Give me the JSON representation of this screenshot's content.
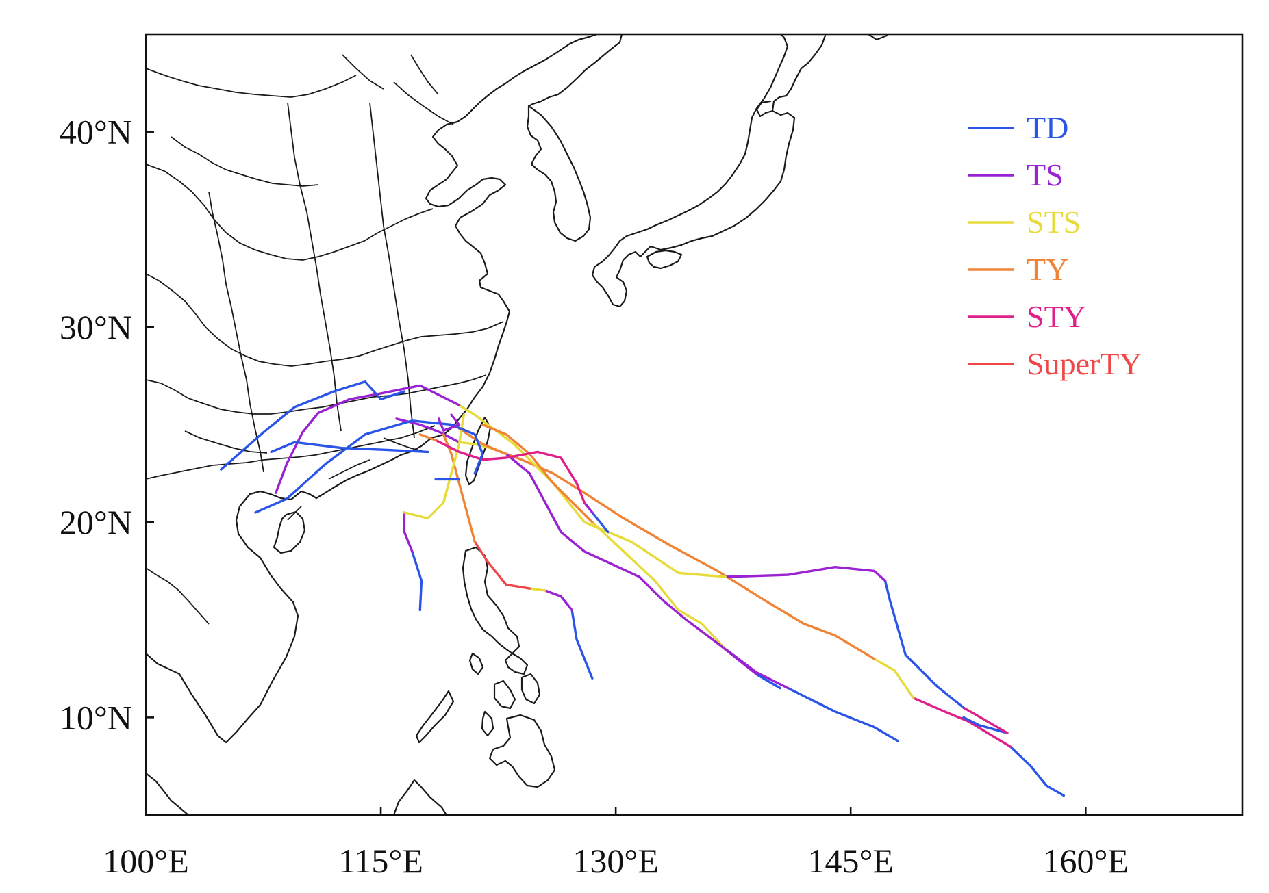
{
  "map": {
    "lon_range": [
      100,
      170
    ],
    "lat_range": [
      5,
      45
    ],
    "x_tick_labels": [
      {
        "lon": 100,
        "label": "100°E"
      },
      {
        "lon": 115,
        "label": "115°E"
      },
      {
        "lon": 130,
        "label": "130°E"
      },
      {
        "lon": 145,
        "label": "145°E"
      },
      {
        "lon": 160,
        "label": "160°E"
      }
    ],
    "y_tick_labels": [
      {
        "lat": 40,
        "label": "40°N"
      },
      {
        "lat": 30,
        "label": "30°N"
      },
      {
        "lat": 20,
        "label": "20°N"
      },
      {
        "lat": 10,
        "label": "10°N"
      }
    ]
  },
  "legend": {
    "placement": "top-right",
    "items": [
      {
        "key": "TD",
        "label": "TD",
        "color": "#2b55e8"
      },
      {
        "key": "TS",
        "label": "TS",
        "color": "#9a22d2"
      },
      {
        "key": "STS",
        "label": "STS",
        "color": "#e6db3a"
      },
      {
        "key": "TY",
        "label": "TY",
        "color": "#ef8436"
      },
      {
        "key": "STY",
        "label": "STY",
        "color": "#e0208a"
      },
      {
        "key": "SuperTY",
        "label": "SuperTY",
        "color": "#ee4848"
      }
    ]
  },
  "tracks": [
    {
      "id": "track-1",
      "segments": [
        {
          "category": "TD",
          "points": [
            [
              158.6,
              6.0
            ],
            [
              157.5,
              6.5
            ],
            [
              156.5,
              7.5
            ],
            [
              155.2,
              8.5
            ]
          ]
        },
        {
          "category": "STY",
          "points": [
            [
              155.2,
              8.5
            ],
            [
              152.5,
              9.8
            ],
            [
              151.0,
              10.3
            ],
            [
              149.0,
              11.0
            ]
          ]
        },
        {
          "category": "STS",
          "points": [
            [
              149.0,
              11.0
            ],
            [
              147.8,
              12.4
            ],
            [
              146.5,
              13.0
            ]
          ]
        },
        {
          "category": "TY",
          "points": [
            [
              146.5,
              13.0
            ],
            [
              144.0,
              14.2
            ],
            [
              142.0,
              14.8
            ],
            [
              139.5,
              16.0
            ],
            [
              136.5,
              17.5
            ],
            [
              133.5,
              18.8
            ],
            [
              130.5,
              20.2
            ],
            [
              128.0,
              21.5
            ],
            [
              126.0,
              22.5
            ],
            [
              124.0,
              23.2
            ],
            [
              122.0,
              23.8
            ]
          ]
        },
        {
          "category": "STS",
          "points": [
            [
              122.0,
              23.8
            ],
            [
              121.0,
              24.0
            ],
            [
              120.0,
              24.1
            ]
          ]
        },
        {
          "category": "TS",
          "points": [
            [
              120.0,
              24.1
            ],
            [
              118.8,
              24.6
            ],
            [
              117.5,
              25.0
            ],
            [
              116.0,
              25.3
            ]
          ]
        }
      ]
    },
    {
      "id": "track-2",
      "segments": [
        {
          "category": "TD",
          "points": [
            [
              152.2,
              10.0
            ],
            [
              153.2,
              9.6
            ],
            [
              155.0,
              9.2
            ]
          ]
        },
        {
          "category": "STY",
          "points": [
            [
              155.0,
              9.2
            ],
            [
              153.5,
              9.9
            ],
            [
              152.2,
              10.5
            ]
          ]
        },
        {
          "category": "TD",
          "points": [
            [
              152.2,
              10.5
            ],
            [
              150.5,
              11.6
            ],
            [
              148.5,
              13.2
            ],
            [
              147.5,
              16.0
            ],
            [
              147.2,
              17.0
            ]
          ]
        },
        {
          "category": "TS",
          "points": [
            [
              147.2,
              17.0
            ],
            [
              146.5,
              17.5
            ],
            [
              144.0,
              17.7
            ],
            [
              141.0,
              17.3
            ],
            [
              137.0,
              17.2
            ]
          ]
        },
        {
          "category": "STS",
          "points": [
            [
              137.0,
              17.2
            ],
            [
              134.0,
              17.4
            ],
            [
              131.0,
              19.0
            ],
            [
              128.0,
              20.0
            ],
            [
              126.0,
              22.0
            ],
            [
              123.5,
              24.0
            ],
            [
              121.0,
              25.5
            ],
            [
              120.0,
              26.0
            ]
          ]
        },
        {
          "category": "TS",
          "points": [
            [
              120.0,
              26.0
            ],
            [
              117.5,
              27.0
            ],
            [
              115.0,
              26.6
            ],
            [
              113.0,
              26.3
            ],
            [
              111.0,
              25.6
            ],
            [
              110.0,
              24.6
            ],
            [
              109.0,
              23.0
            ],
            [
              108.3,
              21.5
            ]
          ]
        }
      ]
    },
    {
      "id": "track-3",
      "segments": [
        {
          "category": "TD",
          "points": [
            [
              148.0,
              8.8
            ],
            [
              146.5,
              9.5
            ],
            [
              144.0,
              10.3
            ],
            [
              142.5,
              10.9
            ],
            [
              141.0,
              11.5
            ]
          ]
        },
        {
          "category": "TS",
          "points": [
            [
              141.0,
              11.5
            ],
            [
              139.0,
              12.3
            ],
            [
              137.0,
              13.5
            ]
          ]
        },
        {
          "category": "STS",
          "points": [
            [
              137.0,
              13.5
            ],
            [
              135.5,
              14.8
            ],
            [
              134.0,
              15.5
            ],
            [
              132.5,
              17.0
            ],
            [
              130.5,
              18.5
            ],
            [
              128.5,
              20.0
            ]
          ]
        },
        {
          "category": "TY",
          "points": [
            [
              128.5,
              20.0
            ],
            [
              127.5,
              20.8
            ],
            [
              126.0,
              22.0
            ],
            [
              124.5,
              23.5
            ],
            [
              123.0,
              24.5
            ],
            [
              121.5,
              25.0
            ]
          ]
        }
      ]
    },
    {
      "id": "track-4",
      "segments": [
        {
          "category": "TD",
          "points": [
            [
              140.5,
              11.5
            ],
            [
              139.0,
              12.2
            ]
          ]
        },
        {
          "category": "TS",
          "points": [
            [
              139.0,
              12.2
            ],
            [
              136.5,
              13.8
            ],
            [
              134.5,
              15.0
            ],
            [
              133.0,
              16.0
            ],
            [
              131.5,
              17.2
            ],
            [
              128.0,
              18.5
            ],
            [
              126.5,
              19.5
            ],
            [
              125.5,
              21.0
            ],
            [
              124.5,
              22.5
            ],
            [
              123.0,
              23.5
            ]
          ]
        },
        {
          "category": "TY",
          "points": [
            [
              123.0,
              23.5
            ],
            [
              121.5,
              24.0
            ],
            [
              120.0,
              24.8
            ]
          ]
        }
      ]
    },
    {
      "id": "track-5",
      "segments": [
        {
          "category": "TD",
          "points": [
            [
              128.5,
              12.0
            ],
            [
              127.5,
              14.0
            ],
            [
              127.2,
              15.5
            ]
          ]
        },
        {
          "category": "TS",
          "points": [
            [
              127.2,
              15.5
            ],
            [
              126.5,
              16.2
            ],
            [
              125.5,
              16.5
            ]
          ]
        },
        {
          "category": "STS",
          "points": [
            [
              125.5,
              16.5
            ],
            [
              124.5,
              16.6
            ]
          ]
        },
        {
          "category": "SuperTY",
          "points": [
            [
              124.5,
              16.6
            ],
            [
              123.0,
              16.8
            ],
            [
              121.8,
              18.0
            ],
            [
              121.0,
              19.0
            ]
          ]
        },
        {
          "category": "TY",
          "points": [
            [
              121.0,
              19.0
            ],
            [
              120.5,
              20.5
            ],
            [
              120.0,
              22.0
            ],
            [
              119.5,
              23.5
            ],
            [
              119.0,
              24.5
            ]
          ]
        }
      ]
    },
    {
      "id": "track-6",
      "segments": [
        {
          "category": "TD",
          "points": [
            [
              117.5,
              15.5
            ],
            [
              117.6,
              17.0
            ],
            [
              117.0,
              18.5
            ]
          ]
        },
        {
          "category": "TS",
          "points": [
            [
              117.0,
              18.5
            ],
            [
              116.5,
              19.5
            ],
            [
              116.5,
              20.5
            ]
          ]
        },
        {
          "category": "STS",
          "points": [
            [
              116.5,
              20.5
            ],
            [
              118.0,
              20.2
            ],
            [
              119.0,
              21.0
            ],
            [
              119.5,
              22.5
            ],
            [
              120.0,
              24.0
            ],
            [
              120.3,
              25.5
            ]
          ]
        }
      ]
    },
    {
      "id": "track-7",
      "segments": [
        {
          "category": "TD",
          "points": [
            [
              129.5,
              19.5
            ],
            [
              128.5,
              20.5
            ]
          ]
        },
        {
          "category": "TS",
          "points": [
            [
              128.5,
              20.5
            ],
            [
              128.0,
              21.0
            ]
          ]
        },
        {
          "category": "STY",
          "points": [
            [
              128.0,
              21.0
            ],
            [
              127.5,
              22.0
            ],
            [
              126.5,
              23.3
            ],
            [
              125.0,
              23.6
            ],
            [
              123.0,
              23.3
            ],
            [
              121.5,
              23.2
            ],
            [
              120.0,
              23.6
            ],
            [
              118.5,
              24.2
            ]
          ]
        },
        {
          "category": "TY",
          "points": [
            [
              118.5,
              24.2
            ],
            [
              117.5,
              24.5
            ]
          ]
        }
      ]
    },
    {
      "id": "track-8",
      "segments": [
        {
          "category": "TD",
          "points": [
            [
              120.0,
              22.2
            ],
            [
              118.5,
              22.2
            ]
          ]
        },
        {
          "category": "TD",
          "points": [
            [
              121.0,
              22.5
            ],
            [
              121.5,
              23.5
            ],
            [
              121.0,
              24.5
            ],
            [
              119.5,
              25.0
            ],
            [
              117.0,
              25.2
            ],
            [
              114.0,
              24.5
            ],
            [
              111.5,
              23.0
            ],
            [
              109.0,
              21.2
            ],
            [
              107.0,
              20.5
            ]
          ]
        },
        {
          "category": "TS",
          "points": [
            [
              119.5,
              25.5
            ],
            [
              120.0,
              25.0
            ],
            [
              119.0,
              24.7
            ],
            [
              118.7,
              25.3
            ]
          ]
        }
      ]
    },
    {
      "id": "track-9",
      "segments": [
        {
          "category": "TD",
          "points": [
            [
              104.8,
              22.7
            ],
            [
              107.5,
              24.6
            ],
            [
              109.5,
              25.9
            ],
            [
              112.0,
              26.7
            ],
            [
              114.0,
              27.2
            ],
            [
              115.0,
              26.3
            ],
            [
              116.5,
              26.7
            ]
          ]
        },
        {
          "category": "TD",
          "points": [
            [
              108.0,
              23.6
            ],
            [
              109.5,
              24.1
            ],
            [
              112.5,
              23.8
            ],
            [
              115.5,
              23.7
            ],
            [
              118.0,
              23.6
            ]
          ]
        }
      ]
    }
  ]
}
